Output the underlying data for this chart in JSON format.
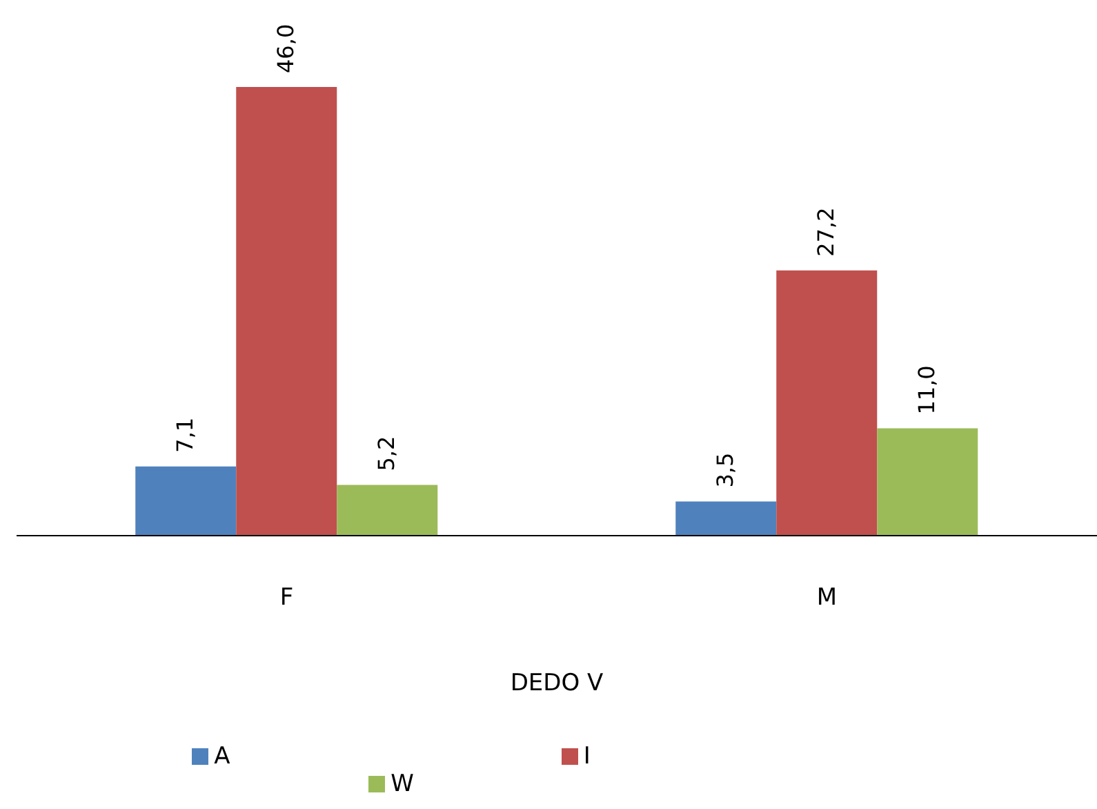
{
  "chart_data": {
    "type": "bar",
    "xlabel": "DEDO V",
    "categories": [
      "F",
      "M"
    ],
    "series": [
      {
        "name": "A",
        "color": "#4f81bd",
        "values": [
          7.1,
          3.5
        ],
        "value_labels": [
          "7,1",
          "3,5"
        ]
      },
      {
        "name": "I",
        "color": "#c0504d",
        "values": [
          46.0,
          27.2
        ],
        "value_labels": [
          "46,0",
          "27,2"
        ]
      },
      {
        "name": "W",
        "color": "#9bbb59",
        "values": [
          5.2,
          11.0
        ],
        "value_labels": [
          "5,2",
          "11,0"
        ]
      }
    ],
    "legend": "bottom",
    "grid": false
  }
}
